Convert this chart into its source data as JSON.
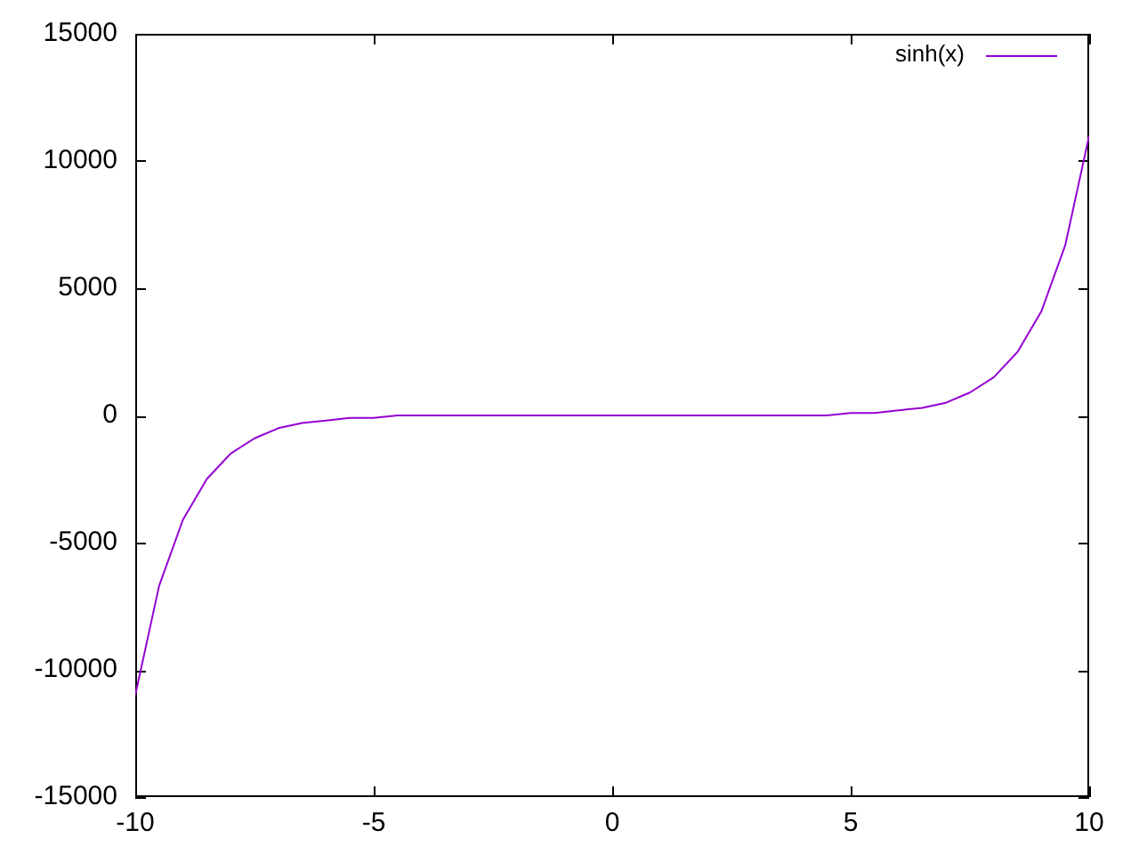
{
  "chart_data": {
    "type": "line",
    "x": [
      -10,
      -9.5,
      -9,
      -8.5,
      -8,
      -7.5,
      -7,
      -6.5,
      -6,
      -5.5,
      -5,
      -4.5,
      -4,
      -3.5,
      -3,
      -2.5,
      -2,
      -1.5,
      -1,
      -0.5,
      0,
      0.5,
      1,
      1.5,
      2,
      2.5,
      3,
      3.5,
      4,
      4.5,
      5,
      5.5,
      6,
      6.5,
      7,
      7.5,
      8,
      8.5,
      9,
      9.5,
      10
    ],
    "series": [
      {
        "name": "sinh(x)",
        "color": "#9400d3",
        "values": [
          -11000,
          -6700,
          -4100,
          -2500,
          -1500,
          -900,
          -500,
          -300,
          -200,
          -100,
          -100,
          0,
          0,
          0,
          0,
          0,
          0,
          0,
          0,
          0,
          0,
          0,
          0,
          0,
          0,
          0,
          0,
          0,
          0,
          0,
          100,
          100,
          200,
          300,
          500,
          900,
          1500,
          2500,
          4100,
          6700,
          11000
        ]
      }
    ],
    "xlim": [
      -10,
      10
    ],
    "xticks": [
      -10,
      -5,
      0,
      5,
      10
    ],
    "ylim": [
      -15000,
      15000
    ],
    "yticks": [
      -15000,
      -10000,
      -5000,
      0,
      5000,
      10000,
      15000
    ],
    "grid": false,
    "legend": "top right",
    "marker": "none",
    "line_style": "solid"
  }
}
